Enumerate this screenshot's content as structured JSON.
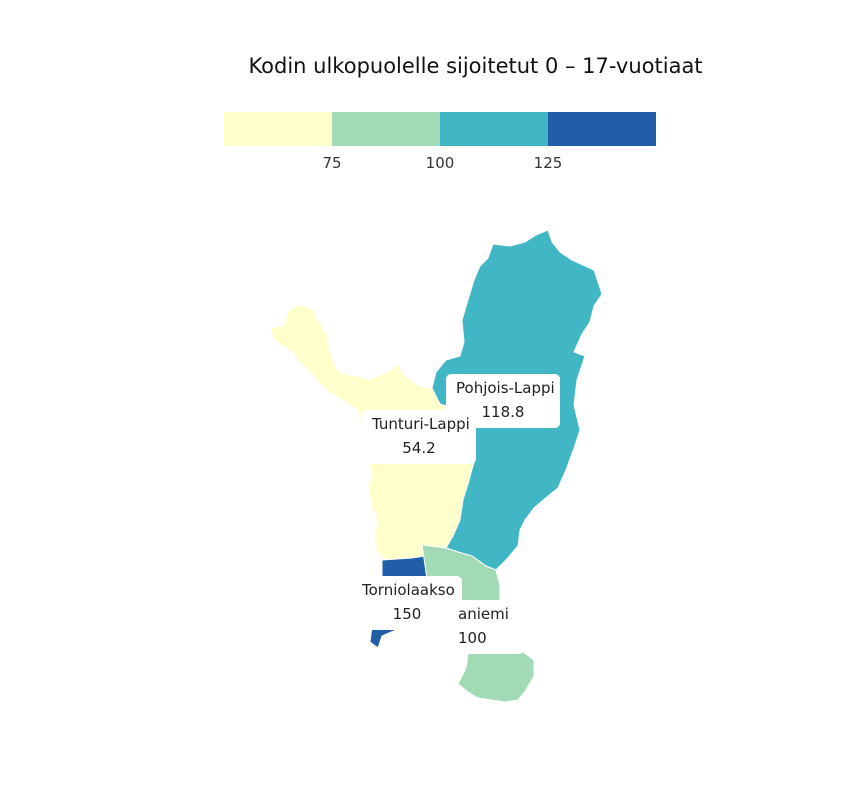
{
  "title": "Kodin ulkopuolelle sijoitetut 0 – 17-vuotiaat",
  "legend": {
    "bins": [
      {
        "color": "#ffffcc"
      },
      {
        "color": "#a1dab4"
      },
      {
        "color": "#41b6c4"
      },
      {
        "color": "#225ea8"
      }
    ],
    "ticks": [
      {
        "value": 75,
        "label": "75"
      },
      {
        "value": 100,
        "label": "100"
      },
      {
        "value": 125,
        "label": "125"
      }
    ],
    "min": 50,
    "max": 150
  },
  "regions": [
    {
      "id": "tunturi-lappi",
      "name": "Tunturi-Lappi",
      "value": 54.2,
      "value_label": "54.2",
      "color": "#ffffcc"
    },
    {
      "id": "pohjois-lappi",
      "name": "Pohjois-Lappi",
      "value": 118.8,
      "value_label": "118.8",
      "color": "#41b6c4"
    },
    {
      "id": "torniolaakso",
      "name": "Torniolaakso",
      "value": 150,
      "value_label": "150",
      "color": "#225ea8"
    },
    {
      "id": "kemi-tornio-lapin-aniemi",
      "name": "aniemi",
      "value": 100,
      "value_label": "100",
      "color": "#a1dab4"
    }
  ]
}
